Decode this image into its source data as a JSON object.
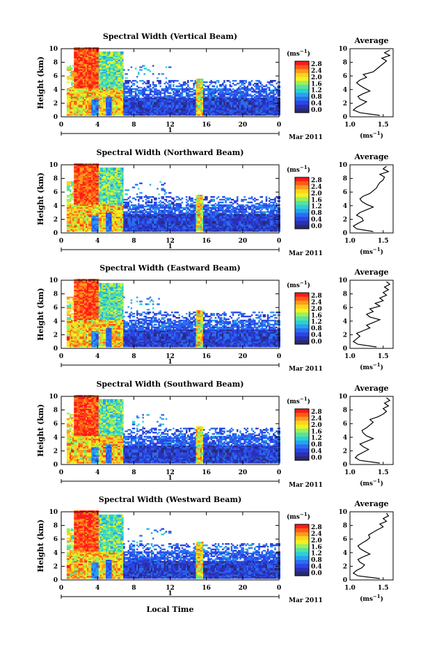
{
  "figure": {
    "xlabel": "Local Time",
    "date_label": "Mar 2011",
    "day_label": "1",
    "colorbar_unit": "(ms",
    "colorbar_unit_exp": "−1",
    "colorbar_unit_close": ")",
    "colorbar_ticks": [
      "2.8",
      "2.4",
      "2.0",
      "1.6",
      "1.2",
      "0.8",
      "0.4",
      "0.0"
    ],
    "colorbar_colors": [
      "#ff1a1a",
      "#ff5a14",
      "#ff9a1e",
      "#ffd21e",
      "#f2f21e",
      "#9af05a",
      "#5ae0a0",
      "#28d2d2",
      "#2aa0f0",
      "#2a6ef0",
      "#2a46e6",
      "#2a30b4",
      "#2a2a6e"
    ],
    "profile_title": "Average",
    "profile_xlabel": "(ms",
    "profile_xlabel_exp": "−1",
    "profile_xlabel_close": ")"
  },
  "chart_data": [
    {
      "type": "heatmap",
      "title": "Spectral Width (Vertical Beam)",
      "ylabel": "Height (km)",
      "xlim": [
        0,
        24
      ],
      "ylim": [
        0,
        10
      ],
      "x_ticks": [
        "0",
        "4",
        "8",
        "12",
        "16",
        "20",
        "0"
      ],
      "y_ticks": [
        "0",
        "2",
        "4",
        "6",
        "8",
        "10"
      ],
      "clim": [
        0.0,
        3.0
      ]
    },
    {
      "type": "line",
      "title": "Average",
      "ylim": [
        0,
        10
      ],
      "xlim": [
        1.0,
        1.65
      ],
      "x_ticks": [
        "1.0",
        "1.5"
      ],
      "y_ticks": [
        "0",
        "2",
        "4",
        "6",
        "8",
        "10"
      ],
      "height_km": [
        0.2,
        0.6,
        1.0,
        1.4,
        1.8,
        2.2,
        2.6,
        3.0,
        3.4,
        3.8,
        4.2,
        4.6,
        5.0,
        5.4,
        5.8,
        6.2,
        6.6,
        7.0,
        7.4,
        7.8,
        8.2,
        8.6,
        9.0,
        9.4,
        9.8
      ],
      "width": [
        1.45,
        1.15,
        1.05,
        1.1,
        1.18,
        1.25,
        1.15,
        1.12,
        1.2,
        1.3,
        1.22,
        1.15,
        1.1,
        1.15,
        1.25,
        1.2,
        1.35,
        1.4,
        1.45,
        1.5,
        1.55,
        1.48,
        1.6,
        1.52,
        1.6
      ]
    },
    {
      "type": "heatmap",
      "title": "Spectral Width (Northward Beam)",
      "ylabel": "Height (km)",
      "xlim": [
        0,
        24
      ],
      "ylim": [
        0,
        10
      ],
      "x_ticks": [
        "0",
        "4",
        "8",
        "12",
        "16",
        "20",
        "0"
      ],
      "y_ticks": [
        "0",
        "2",
        "4",
        "6",
        "8",
        "10"
      ],
      "clim": [
        0.0,
        3.0
      ]
    },
    {
      "type": "line",
      "title": "Average",
      "ylim": [
        0,
        10
      ],
      "xlim": [
        1.0,
        1.65
      ],
      "x_ticks": [
        "1.0",
        "1.5"
      ],
      "y_ticks": [
        "0",
        "2",
        "4",
        "6",
        "8",
        "10"
      ],
      "height_km": [
        0.2,
        0.6,
        1.0,
        1.4,
        1.8,
        2.2,
        2.6,
        3.0,
        3.4,
        3.8,
        4.2,
        4.6,
        5.0,
        5.4,
        5.8,
        6.2,
        6.6,
        7.0,
        7.4,
        7.8,
        8.2,
        8.6,
        9.0,
        9.4,
        9.8
      ],
      "width": [
        1.35,
        1.1,
        1.05,
        1.12,
        1.2,
        1.18,
        1.1,
        1.15,
        1.25,
        1.35,
        1.25,
        1.18,
        1.15,
        1.2,
        1.3,
        1.35,
        1.4,
        1.42,
        1.45,
        1.5,
        1.52,
        1.45,
        1.58,
        1.5,
        1.55
      ]
    },
    {
      "type": "heatmap",
      "title": "Spectral Width (Eastward Beam)",
      "ylabel": "Height (km)",
      "xlim": [
        0,
        24
      ],
      "ylim": [
        0,
        10
      ],
      "x_ticks": [
        "0",
        "4",
        "8",
        "12",
        "16",
        "20",
        "0"
      ],
      "y_ticks": [
        "0",
        "2",
        "4",
        "6",
        "8",
        "10"
      ],
      "clim": [
        0.0,
        3.0
      ]
    },
    {
      "type": "line",
      "title": "Average",
      "ylim": [
        0,
        10
      ],
      "xlim": [
        1.0,
        1.65
      ],
      "x_ticks": [
        "1.0",
        "1.5"
      ],
      "y_ticks": [
        "0",
        "2",
        "4",
        "6",
        "8",
        "10"
      ],
      "height_km": [
        0.2,
        0.6,
        1.0,
        1.4,
        1.8,
        2.2,
        2.6,
        3.0,
        3.4,
        3.8,
        4.2,
        4.6,
        5.0,
        5.4,
        5.8,
        6.2,
        6.6,
        7.0,
        7.4,
        7.8,
        8.2,
        8.6,
        9.0,
        9.4,
        9.8
      ],
      "width": [
        1.4,
        1.12,
        1.05,
        1.1,
        1.15,
        1.1,
        1.2,
        1.3,
        1.25,
        1.35,
        1.45,
        1.3,
        1.25,
        1.35,
        1.3,
        1.45,
        1.38,
        1.5,
        1.45,
        1.55,
        1.5,
        1.58,
        1.52,
        1.6,
        1.55
      ]
    },
    {
      "type": "heatmap",
      "title": "Spectral Width (Southward Beam)",
      "ylabel": "Height (km)",
      "xlim": [
        0,
        24
      ],
      "ylim": [
        0,
        10
      ],
      "x_ticks": [
        "0",
        "4",
        "8",
        "12",
        "16",
        "20",
        "0"
      ],
      "y_ticks": [
        "0",
        "2",
        "4",
        "6",
        "8",
        "10"
      ],
      "clim": [
        0.0,
        3.0
      ]
    },
    {
      "type": "line",
      "title": "Average",
      "ylim": [
        0,
        10
      ],
      "xlim": [
        1.0,
        1.65
      ],
      "x_ticks": [
        "1.0",
        "1.5"
      ],
      "y_ticks": [
        "0",
        "2",
        "4",
        "6",
        "8",
        "10"
      ],
      "height_km": [
        0.2,
        0.6,
        1.0,
        1.4,
        1.8,
        2.2,
        2.6,
        3.0,
        3.4,
        3.8,
        4.2,
        4.6,
        5.0,
        5.4,
        5.8,
        6.2,
        6.6,
        7.0,
        7.4,
        7.8,
        8.2,
        8.6,
        9.0,
        9.4,
        9.8
      ],
      "width": [
        1.45,
        1.15,
        1.08,
        1.12,
        1.2,
        1.28,
        1.2,
        1.15,
        1.25,
        1.35,
        1.25,
        1.2,
        1.18,
        1.25,
        1.3,
        1.35,
        1.3,
        1.42,
        1.5,
        1.55,
        1.5,
        1.58,
        1.52,
        1.6,
        1.55
      ]
    },
    {
      "type": "heatmap",
      "title": "Spectral Width (Westward Beam)",
      "ylabel": "Height (km)",
      "xlim": [
        0,
        24
      ],
      "ylim": [
        0,
        10
      ],
      "x_ticks": [
        "0",
        "4",
        "8",
        "12",
        "16",
        "20",
        "0"
      ],
      "y_ticks": [
        "0",
        "2",
        "4",
        "6",
        "8",
        "10"
      ],
      "clim": [
        0.0,
        3.0
      ]
    },
    {
      "type": "line",
      "title": "Average",
      "ylim": [
        0,
        10
      ],
      "xlim": [
        1.0,
        1.65
      ],
      "x_ticks": [
        "1.0",
        "1.5"
      ],
      "y_ticks": [
        "0",
        "2",
        "4",
        "6",
        "8",
        "10"
      ],
      "height_km": [
        0.2,
        0.6,
        1.0,
        1.4,
        1.8,
        2.2,
        2.6,
        3.0,
        3.4,
        3.8,
        4.2,
        4.6,
        5.0,
        5.4,
        5.8,
        6.2,
        6.6,
        7.0,
        7.4,
        7.8,
        8.2,
        8.6,
        9.0,
        9.4,
        9.8
      ],
      "width": [
        1.45,
        1.12,
        1.05,
        1.1,
        1.18,
        1.22,
        1.15,
        1.12,
        1.2,
        1.3,
        1.22,
        1.15,
        1.12,
        1.18,
        1.25,
        1.3,
        1.28,
        1.35,
        1.42,
        1.5,
        1.45,
        1.55,
        1.5,
        1.58,
        1.55
      ]
    }
  ]
}
